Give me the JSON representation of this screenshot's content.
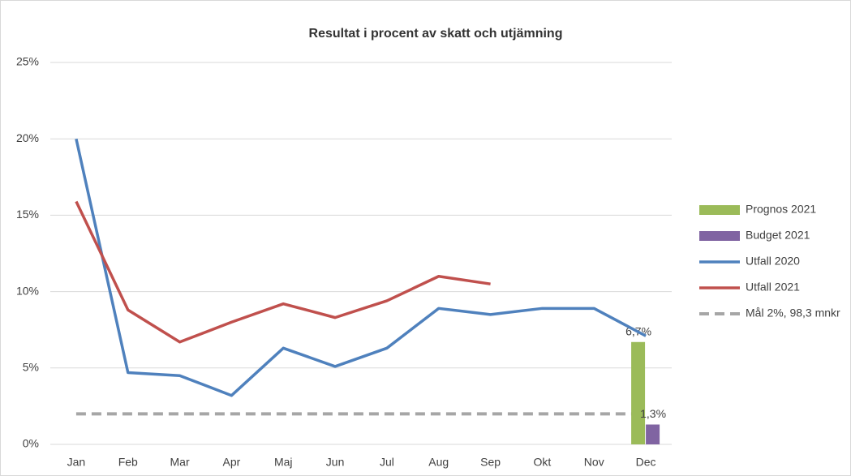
{
  "chart_data": {
    "type": "combo",
    "title": "Resultat i procent av skatt och utjämning",
    "categories": [
      "Jan",
      "Feb",
      "Mar",
      "Apr",
      "Maj",
      "Jun",
      "Jul",
      "Aug",
      "Sep",
      "Okt",
      "Nov",
      "Dec"
    ],
    "ylim": [
      0,
      25
    ],
    "yticks": [
      {
        "value": 0,
        "label": "0%"
      },
      {
        "value": 5,
        "label": "5%"
      },
      {
        "value": 10,
        "label": "10%"
      },
      {
        "value": 15,
        "label": "15%"
      },
      {
        "value": 20,
        "label": "20%"
      },
      {
        "value": 25,
        "label": "25%"
      }
    ],
    "grid": true,
    "legend": "right",
    "series": [
      {
        "name": "Prognos 2021",
        "type": "bar",
        "color": "#9bbb59",
        "values": [
          null,
          null,
          null,
          null,
          null,
          null,
          null,
          null,
          null,
          null,
          null,
          6.7
        ],
        "value_labels": [
          null,
          null,
          null,
          null,
          null,
          null,
          null,
          null,
          null,
          null,
          null,
          "6,7%"
        ]
      },
      {
        "name": "Budget 2021",
        "type": "bar",
        "color": "#8064a2",
        "values": [
          null,
          null,
          null,
          null,
          null,
          null,
          null,
          null,
          null,
          null,
          null,
          1.3
        ],
        "value_labels": [
          null,
          null,
          null,
          null,
          null,
          null,
          null,
          null,
          null,
          null,
          null,
          "1,3%"
        ]
      },
      {
        "name": "Utfall 2020",
        "type": "line",
        "color": "#4f81bd",
        "values": [
          20.0,
          4.7,
          4.5,
          3.2,
          6.3,
          5.1,
          6.3,
          8.9,
          8.5,
          8.9,
          8.9,
          7.1
        ]
      },
      {
        "name": "Utfall 2021",
        "type": "line",
        "color": "#c0504d",
        "values": [
          15.9,
          8.8,
          6.7,
          8.0,
          9.2,
          8.3,
          9.4,
          11.0,
          10.5,
          null,
          null,
          null
        ]
      },
      {
        "name": "Mål 2%, 98,3 mnkr",
        "type": "line",
        "dashed": true,
        "color": "#a6a6a6",
        "values": [
          2,
          2,
          2,
          2,
          2,
          2,
          2,
          2,
          2,
          2,
          2,
          2
        ]
      }
    ]
  }
}
